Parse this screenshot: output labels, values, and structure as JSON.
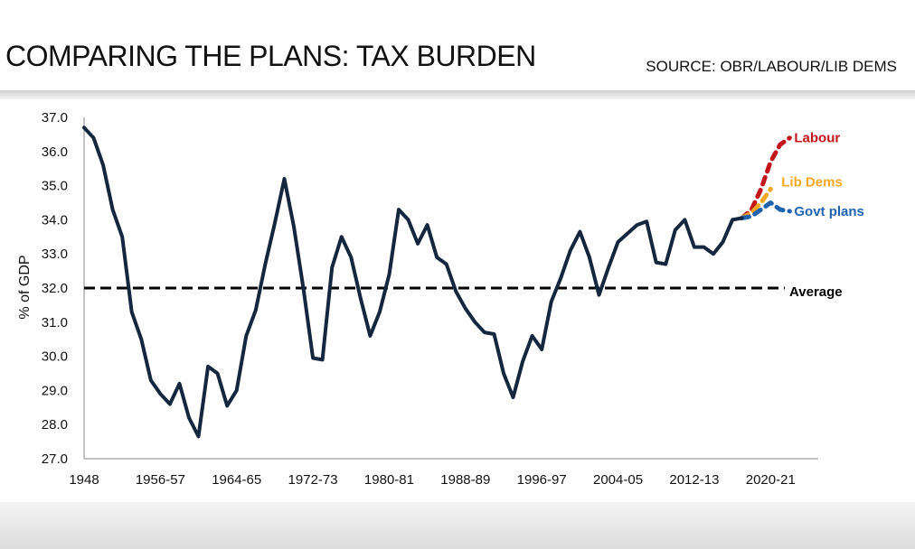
{
  "header": {
    "title": "COMPARING THE PLANS: TAX BURDEN",
    "source": "SOURCE: OBR/LABOUR/LIB DEMS"
  },
  "colors": {
    "history": "#15263f",
    "average": "#000000",
    "labour": "#c4151c",
    "lib_dems": "#f5a623",
    "govt": "#1f63b0"
  },
  "chart_data": {
    "type": "line",
    "title": "COMPARING THE PLANS: TAX BURDEN",
    "ylabel": "% of GDP",
    "xlabel": "",
    "ylim": [
      27.0,
      37.0
    ],
    "yticks": [
      "27.0",
      "28.0",
      "29.0",
      "30.0",
      "31.0",
      "32.0",
      "33.0",
      "34.0",
      "35.0",
      "36.0",
      "37.0"
    ],
    "xticks": [
      "1948",
      "1956-57",
      "1964-65",
      "1972-73",
      "1980-81",
      "1988-89",
      "1996-97",
      "2004-05",
      "2012-13",
      "2020-21"
    ],
    "xlim": [
      1948,
      2025
    ],
    "grid": false,
    "average": {
      "label": "Average",
      "value": 32.0
    },
    "series": [
      {
        "name": "",
        "style": "solid",
        "color_key": "history",
        "x": [
          1948,
          1949,
          1950,
          1951,
          1952,
          1953,
          1954,
          1955,
          1956,
          1957,
          1958,
          1959,
          1960,
          1961,
          1962,
          1963,
          1964,
          1965,
          1966,
          1967,
          1968,
          1969,
          1970,
          1971,
          1972,
          1973,
          1974,
          1975,
          1976,
          1977,
          1978,
          1979,
          1980,
          1981,
          1982,
          1983,
          1984,
          1985,
          1986,
          1987,
          1988,
          1989,
          1990,
          1991,
          1992,
          1993,
          1994,
          1995,
          1996,
          1997,
          1998,
          1999,
          2000,
          2001,
          2002,
          2003,
          2004,
          2005,
          2006,
          2007,
          2008,
          2009,
          2010,
          2011,
          2012,
          2013,
          2014,
          2015,
          2016,
          2017
        ],
        "values": [
          36.7,
          36.4,
          35.6,
          34.3,
          33.5,
          31.3,
          30.5,
          29.3,
          28.9,
          28.6,
          29.2,
          28.2,
          27.65,
          29.7,
          29.5,
          28.55,
          29.0,
          30.6,
          31.35,
          32.7,
          33.9,
          35.2,
          33.8,
          32.0,
          29.95,
          29.9,
          32.6,
          33.5,
          32.9,
          31.7,
          30.6,
          31.3,
          32.4,
          34.3,
          34.0,
          33.3,
          33.85,
          32.9,
          32.7,
          31.9,
          31.4,
          31.0,
          30.7,
          30.65,
          29.5,
          28.8,
          29.85,
          30.6,
          30.2,
          31.6,
          32.3,
          33.1,
          33.65,
          32.9,
          31.8,
          32.6,
          33.35,
          33.6,
          33.85,
          33.95,
          32.75,
          32.7,
          33.7,
          34.0,
          33.2,
          33.2,
          33.0,
          33.35,
          34.0,
          34.05
        ]
      },
      {
        "name": "Labour",
        "style": "dashed",
        "color_key": "labour",
        "x": [
          2017,
          2018,
          2019,
          2020,
          2021,
          2022
        ],
        "values": [
          34.05,
          34.3,
          34.9,
          35.7,
          36.2,
          36.4
        ]
      },
      {
        "name": "Lib Dems",
        "style": "dashed",
        "color_key": "lib_dems",
        "x": [
          2017,
          2018,
          2019,
          2020
        ],
        "values": [
          34.05,
          34.2,
          34.5,
          34.9
        ]
      },
      {
        "name": "Govt plans",
        "style": "dashed",
        "color_key": "govt",
        "x": [
          2017,
          2018,
          2019,
          2020,
          2021,
          2022
        ],
        "values": [
          34.05,
          34.1,
          34.3,
          34.5,
          34.3,
          34.25
        ]
      }
    ]
  }
}
